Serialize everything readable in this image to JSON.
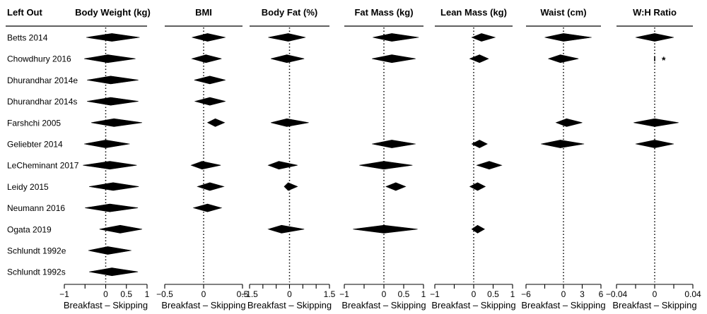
{
  "chart_data": {
    "type": "forest",
    "row_header": "Left Out",
    "studies": [
      "Betts 2014",
      "Chowdhury 2016",
      "Dhurandhar 2014e",
      "Dhurandhar 2014s",
      "Farshchi 2005",
      "Geliebter 2014",
      "LeCheminant 2017",
      "Leidy 2015",
      "Neumann 2016",
      "Ogata 2019",
      "Schlundt 1992e",
      "Schlundt 1992s"
    ],
    "panels": [
      {
        "title": "Body Weight (kg)",
        "xlim": [
          -1,
          1
        ],
        "ticks": [
          -1,
          -0.5,
          0,
          0.5,
          1
        ],
        "tick_labels": [
          "−1",
          "",
          "0",
          "0.5",
          "1"
        ],
        "xlabel": "Breakfast – Skipping",
        "estimates": [
          {
            "study": "Betts 2014",
            "est": 0.15,
            "lo": -0.47,
            "hi": 0.82
          },
          {
            "study": "Chowdhury 2016",
            "est": 0.05,
            "lo": -0.52,
            "hi": 0.72
          },
          {
            "study": "Dhurandhar 2014e",
            "est": 0.12,
            "lo": -0.45,
            "hi": 0.79
          },
          {
            "study": "Dhurandhar 2014s",
            "est": 0.12,
            "lo": -0.45,
            "hi": 0.79
          },
          {
            "study": "Farshchi 2005",
            "est": 0.2,
            "lo": -0.35,
            "hi": 0.88
          },
          {
            "study": "Geliebter 2014",
            "est": 0,
            "lo": -0.52,
            "hi": 0.58
          },
          {
            "study": "LeCheminant 2017",
            "est": 0.1,
            "lo": -0.55,
            "hi": 0.75
          },
          {
            "study": "Leidy 2015",
            "est": 0.18,
            "lo": -0.4,
            "hi": 0.8
          },
          {
            "study": "Neumann 2016",
            "est": 0.1,
            "lo": -0.5,
            "hi": 0.78
          },
          {
            "study": "Ogata 2019",
            "est": 0.35,
            "lo": -0.15,
            "hi": 0.88
          },
          {
            "study": "Schlundt 1992e",
            "est": 0.05,
            "lo": -0.42,
            "hi": 0.62
          },
          {
            "study": "Schlundt 1992s",
            "est": 0.15,
            "lo": -0.4,
            "hi": 0.78
          }
        ]
      },
      {
        "title": "BMI",
        "xlim": [
          -0.5,
          0.5
        ],
        "ticks": [
          -0.5,
          0,
          0.5
        ],
        "tick_labels": [
          "−0.5",
          "0",
          "0.5"
        ],
        "xlabel": "Breakfast – Skipping",
        "estimates": [
          {
            "study": "Betts 2014",
            "est": 0.05,
            "lo": -0.15,
            "hi": 0.28
          },
          {
            "study": "Chowdhury 2016",
            "est": 0.03,
            "lo": -0.15,
            "hi": 0.23
          },
          {
            "study": "Dhurandhar 2014e",
            "est": 0.08,
            "lo": -0.12,
            "hi": 0.28
          },
          {
            "study": "Dhurandhar 2014s",
            "est": 0.08,
            "lo": -0.11,
            "hi": 0.28
          },
          {
            "study": "Farshchi 2005",
            "est": 0.15,
            "lo": 0.05,
            "hi": 0.27
          },
          {
            "study": "LeCheminant 2017",
            "est": -0.02,
            "lo": -0.16,
            "hi": 0.22
          },
          {
            "study": "Leidy 2015",
            "est": 0.08,
            "lo": -0.08,
            "hi": 0.26
          },
          {
            "study": "Neumann 2016",
            "est": 0.05,
            "lo": -0.13,
            "hi": 0.23
          }
        ]
      },
      {
        "title": "Body Fat (%)",
        "xlim": [
          -1.5,
          1.5
        ],
        "ticks": [
          -1.5,
          -1,
          -0.5,
          0,
          0.5,
          1,
          1.5
        ],
        "tick_labels": [
          "−1.5",
          "",
          "",
          "0",
          "",
          "",
          "1.5"
        ],
        "xlabel": "Breakfast – Skipping",
        "estimates": [
          {
            "study": "Betts 2014",
            "est": -0.05,
            "lo": -0.8,
            "hi": 0.6
          },
          {
            "study": "Chowdhury 2016",
            "est": -0.1,
            "lo": -0.7,
            "hi": 0.55
          },
          {
            "study": "Farshchi 2005",
            "est": -0.1,
            "lo": -0.7,
            "hi": 0.72
          },
          {
            "study": "LeCheminant 2017",
            "est": -0.4,
            "lo": -0.8,
            "hi": 0.3
          },
          {
            "study": "Leidy 2015",
            "est": -0.05,
            "lo": -0.2,
            "hi": 0.3
          },
          {
            "study": "Ogata 2019",
            "est": -0.3,
            "lo": -0.8,
            "hi": 0.55
          }
        ]
      },
      {
        "title": "Fat Mass (kg)",
        "xlim": [
          -1,
          1
        ],
        "ticks": [
          -1,
          -0.5,
          0,
          0.5,
          1
        ],
        "tick_labels": [
          "−1",
          "",
          "0",
          "0.5",
          "1"
        ],
        "xlabel": "Breakfast – Skipping",
        "estimates": [
          {
            "study": "Betts 2014",
            "est": 0.2,
            "lo": -0.28,
            "hi": 0.88
          },
          {
            "study": "Chowdhury 2016",
            "est": 0.2,
            "lo": -0.3,
            "hi": 0.8
          },
          {
            "study": "Geliebter 2014",
            "est": 0.2,
            "lo": -0.3,
            "hi": 0.8
          },
          {
            "study": "LeCheminant 2017",
            "est": 0,
            "lo": -0.62,
            "hi": 0.72
          },
          {
            "study": "Leidy 2015",
            "est": 0.3,
            "lo": 0.05,
            "hi": 0.55
          },
          {
            "study": "Ogata 2019",
            "est": 0,
            "lo": -0.78,
            "hi": 0.85
          }
        ]
      },
      {
        "title": "Lean Mass (kg)",
        "xlim": [
          -1,
          1
        ],
        "ticks": [
          -1,
          -0.5,
          0,
          0.5,
          1
        ],
        "tick_labels": [
          "−1",
          "",
          "0",
          "0.5",
          "1"
        ],
        "xlabel": "Breakfast – Skipping",
        "estimates": [
          {
            "study": "Betts 2014",
            "est": 0.2,
            "lo": -0.05,
            "hi": 0.55
          },
          {
            "study": "Chowdhury 2016",
            "est": 0.15,
            "lo": -0.1,
            "hi": 0.38
          },
          {
            "study": "Geliebter 2014",
            "est": 0.15,
            "lo": -0.05,
            "hi": 0.35
          },
          {
            "study": "LeCheminant 2017",
            "est": 0.4,
            "lo": 0.08,
            "hi": 0.72
          },
          {
            "study": "Leidy 2015",
            "est": 0.1,
            "lo": -0.1,
            "hi": 0.3
          },
          {
            "study": "Ogata 2019",
            "est": 0.1,
            "lo": -0.05,
            "hi": 0.28
          }
        ]
      },
      {
        "title": "Waist (cm)",
        "xlim": [
          -6,
          6
        ],
        "ticks": [
          -6,
          -3,
          0,
          3,
          6
        ],
        "tick_labels": [
          "−6",
          "",
          "0",
          "3",
          "6"
        ],
        "xlabel": "Breakfast – Skipping",
        "estimates": [
          {
            "study": "Betts 2014",
            "est": 0,
            "lo": -3,
            "hi": 4.5
          },
          {
            "study": "Chowdhury 2016",
            "est": -0.5,
            "lo": -2.4,
            "hi": 2.4
          },
          {
            "study": "Farshchi 2005",
            "est": 0.5,
            "lo": -1.2,
            "hi": 3
          },
          {
            "study": "Geliebter 2014",
            "est": -0.5,
            "lo": -3.6,
            "hi": 3.3
          }
        ]
      },
      {
        "title": "W:H Ratio",
        "xlim": [
          -0.04,
          0.04
        ],
        "ticks": [
          -0.04,
          -0.02,
          0,
          0.02,
          0.04
        ],
        "tick_labels": [
          "−0.04",
          "",
          "0",
          "",
          "0.04"
        ],
        "xlabel": "Breakfast – Skipping",
        "estimates": [
          {
            "study": "Betts 2014",
            "est": 0,
            "lo": -0.02,
            "hi": 0.02
          },
          {
            "study": "Farshchi 2005",
            "est": 0,
            "lo": -0.022,
            "hi": 0.025
          },
          {
            "study": "Geliebter 2014",
            "est": 0,
            "lo": -0.02,
            "hi": 0.02
          }
        ],
        "markers": [
          {
            "study": "Chowdhury 2016",
            "est": 0,
            "label": "*"
          }
        ]
      }
    ]
  }
}
